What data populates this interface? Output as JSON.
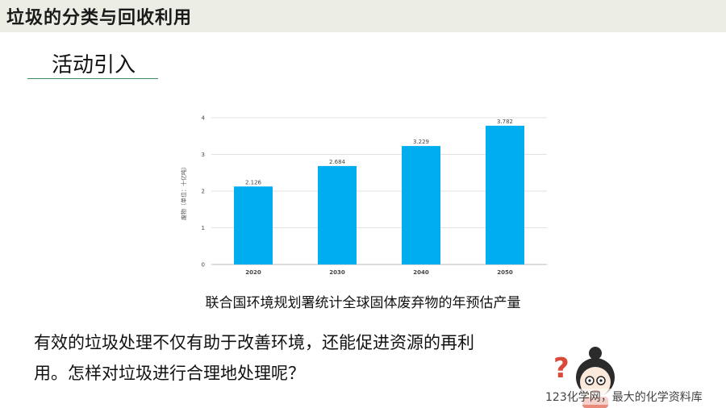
{
  "header": {
    "title": "垃圾的分类与回收利用"
  },
  "section": {
    "title": "活动引入"
  },
  "chart_data": {
    "type": "bar",
    "categories": [
      "2020",
      "2030",
      "2040",
      "2050"
    ],
    "values": [
      2.126,
      2.684,
      3.229,
      3.782
    ],
    "value_labels": [
      "2.126",
      "2.684",
      "3.229",
      "3.782"
    ],
    "ylabel": "废物（单位：十亿吨）",
    "ylim": [
      0,
      4
    ],
    "yticks": [
      "0",
      "1",
      "2",
      "3",
      "4"
    ],
    "grid": true,
    "bar_color": "#00aeef"
  },
  "caption": "联合国环境规划署统计全球固体废弃物的年预估产量",
  "body": {
    "line1": "有效的垃圾处理不仅有助于改善环境，还能促进资源的再利",
    "line2": "用。怎样对垃圾进行合理地处理呢？"
  },
  "watermark": "123化学网，最大的化学资料库",
  "mascot": {
    "icon": "thinking-girl-question-icon",
    "mark": "?"
  }
}
